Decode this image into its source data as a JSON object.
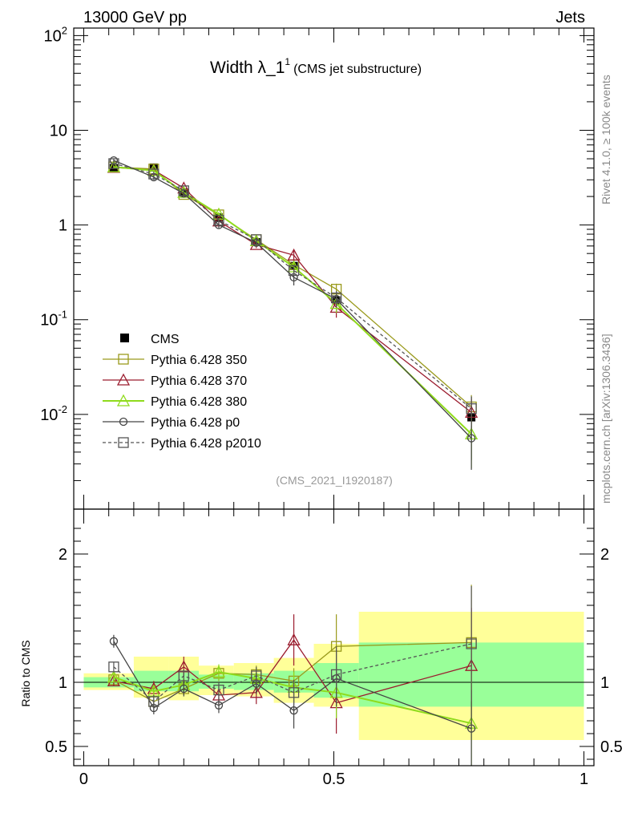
{
  "header": {
    "left": "13000 GeV pp",
    "right": "Jets"
  },
  "plot_title": {
    "main": "Width λ_1",
    "superscript": "1",
    "sub": "(CMS jet substructure)"
  },
  "analysis_id": "(CMS_2021_I1920187)",
  "side_labels": {
    "rivet": "Rivet 4.1.0, ≥ 100k events",
    "mcplots": "mcplots.cern.ch [arXiv:1306.3436]"
  },
  "colors": {
    "CMS": "#000000",
    "p350": "#9a9a1c",
    "p370": "#9b1c2e",
    "p380": "#8fdb1c",
    "p0": "#444444",
    "p2010": "#555555",
    "band_outer": "#ffff99",
    "band_inner": "#99ff99"
  },
  "chart_data": [
    {
      "type": "line",
      "panel": "main",
      "yscale": "log",
      "ylim": [
        0.001,
        120
      ],
      "xlim": [
        -0.02,
        1.02
      ],
      "ytick_labels": [
        "10^-2",
        "10^-1",
        "1",
        "10",
        "10^2"
      ],
      "x": [
        0.06,
        0.14,
        0.2,
        0.27,
        0.345,
        0.42,
        0.505,
        0.775
      ],
      "xerr_bins": [
        [
          0.0,
          0.1
        ],
        [
          0.1,
          0.17
        ],
        [
          0.17,
          0.23
        ],
        [
          0.23,
          0.3
        ],
        [
          0.3,
          0.38
        ],
        [
          0.38,
          0.46
        ],
        [
          0.46,
          0.55
        ],
        [
          0.55,
          1.0
        ]
      ],
      "series": [
        {
          "key": "CMS",
          "name": "CMS",
          "marker": "filled-square",
          "values": [
            4.0,
            4.05,
            2.2,
            1.2,
            0.66,
            0.37,
            0.16,
            0.0093
          ],
          "errors": [
            0.2,
            0.25,
            0.15,
            0.09,
            0.05,
            0.04,
            0.04,
            0.006
          ]
        },
        {
          "key": "p350",
          "name": "Pythia 6.428 350",
          "marker": "open-square",
          "values": [
            4.1,
            3.9,
            2.1,
            1.28,
            0.7,
            0.38,
            0.21,
            0.012
          ],
          "errors": [
            0.15,
            0.2,
            0.1,
            0.07,
            0.05,
            0.04,
            0.03,
            0.004
          ]
        },
        {
          "key": "p370",
          "name": "Pythia 6.428 370",
          "marker": "open-triangle",
          "values": [
            4.05,
            3.8,
            2.45,
            1.1,
            0.62,
            0.48,
            0.135,
            0.0105
          ],
          "errors": [
            0.15,
            0.2,
            0.15,
            0.08,
            0.05,
            0.07,
            0.03,
            0.004
          ]
        },
        {
          "key": "p380",
          "name": "Pythia 6.428 380",
          "marker": "open-triangle",
          "values": [
            4.1,
            3.75,
            2.2,
            1.3,
            0.68,
            0.36,
            0.148,
            0.0062
          ],
          "errors": [
            0.15,
            0.2,
            0.12,
            0.07,
            0.05,
            0.04,
            0.03,
            0.0035
          ]
        },
        {
          "key": "p0",
          "name": "Pythia 6.428 p0",
          "marker": "open-circle",
          "values": [
            4.8,
            3.2,
            2.15,
            1.0,
            0.65,
            0.28,
            0.165,
            0.0056
          ],
          "errors": [
            0.2,
            0.2,
            0.12,
            0.07,
            0.05,
            0.05,
            0.03,
            0.003
          ]
        },
        {
          "key": "p2010",
          "name": "Pythia 6.428 p2010",
          "marker": "open-square",
          "dashed": true,
          "values": [
            4.45,
            3.45,
            2.3,
            1.12,
            0.7,
            0.33,
            0.17,
            0.0115
          ],
          "errors": [
            0.2,
            0.2,
            0.12,
            0.07,
            0.05,
            0.04,
            0.03,
            0.004
          ]
        }
      ]
    },
    {
      "type": "line",
      "panel": "ratio",
      "ylabel": "Ratio to CMS",
      "ylim": [
        0.35,
        2.35
      ],
      "ytick_labels": [
        "0.5",
        "1",
        "2"
      ],
      "xtick_labels": [
        "0",
        "0.5",
        "1"
      ],
      "bands": [
        {
          "xmin": 0.0,
          "xmax": 0.1,
          "outer": [
            0.94,
            1.07
          ],
          "inner": [
            0.96,
            1.04
          ]
        },
        {
          "xmin": 0.1,
          "xmax": 0.17,
          "outer": [
            0.88,
            1.2
          ],
          "inner": [
            0.93,
            1.09
          ]
        },
        {
          "xmin": 0.17,
          "xmax": 0.23,
          "outer": [
            0.86,
            1.2
          ],
          "inner": [
            0.93,
            1.09
          ]
        },
        {
          "xmin": 0.23,
          "xmax": 0.3,
          "outer": [
            0.9,
            1.13
          ],
          "inner": [
            0.95,
            1.06
          ]
        },
        {
          "xmin": 0.3,
          "xmax": 0.38,
          "outer": [
            0.89,
            1.15
          ],
          "inner": [
            0.94,
            1.07
          ]
        },
        {
          "xmin": 0.38,
          "xmax": 0.46,
          "outer": [
            0.84,
            1.19
          ],
          "inner": [
            0.92,
            1.09
          ]
        },
        {
          "xmin": 0.46,
          "xmax": 0.55,
          "outer": [
            0.81,
            1.3
          ],
          "inner": [
            0.88,
            1.15
          ]
        },
        {
          "xmin": 0.55,
          "xmax": 1.0,
          "outer": [
            0.55,
            1.55
          ],
          "inner": [
            0.81,
            1.31
          ]
        }
      ],
      "series": [
        {
          "key": "p350",
          "name": "Pythia 6.428 350",
          "values": [
            1.02,
            0.85,
            0.95,
            1.07,
            1.06,
            1.01,
            1.28,
            1.31
          ],
          "errors": [
            0.04,
            0.05,
            0.05,
            0.06,
            0.07,
            0.1,
            0.25,
            0.45
          ]
        },
        {
          "key": "p370",
          "name": "Pythia 6.428 370",
          "values": [
            1.01,
            0.95,
            1.12,
            0.9,
            0.92,
            1.33,
            0.84,
            1.13
          ],
          "errors": [
            0.04,
            0.06,
            0.08,
            0.07,
            0.09,
            0.2,
            0.24,
            0.45
          ]
        },
        {
          "key": "p380",
          "name": "Pythia 6.428 380",
          "values": [
            1.04,
            0.93,
            0.98,
            1.08,
            1.03,
            0.96,
            0.92,
            0.68
          ],
          "errors": [
            0.04,
            0.05,
            0.06,
            0.06,
            0.08,
            0.12,
            0.2,
            0.38
          ]
        },
        {
          "key": "p0",
          "name": "Pythia 6.428 p0",
          "values": [
            1.32,
            0.8,
            0.95,
            0.82,
            0.99,
            0.78,
            1.03,
            0.64
          ],
          "errors": [
            0.05,
            0.05,
            0.06,
            0.06,
            0.08,
            0.14,
            0.22,
            0.3
          ]
        },
        {
          "key": "p2010",
          "name": "Pythia 6.428 p2010",
          "values": [
            1.12,
            0.85,
            1.05,
            0.94,
            1.05,
            0.92,
            1.06,
            1.3
          ],
          "errors": [
            0.04,
            0.05,
            0.05,
            0.06,
            0.07,
            0.1,
            0.22,
            0.45
          ]
        }
      ]
    }
  ]
}
